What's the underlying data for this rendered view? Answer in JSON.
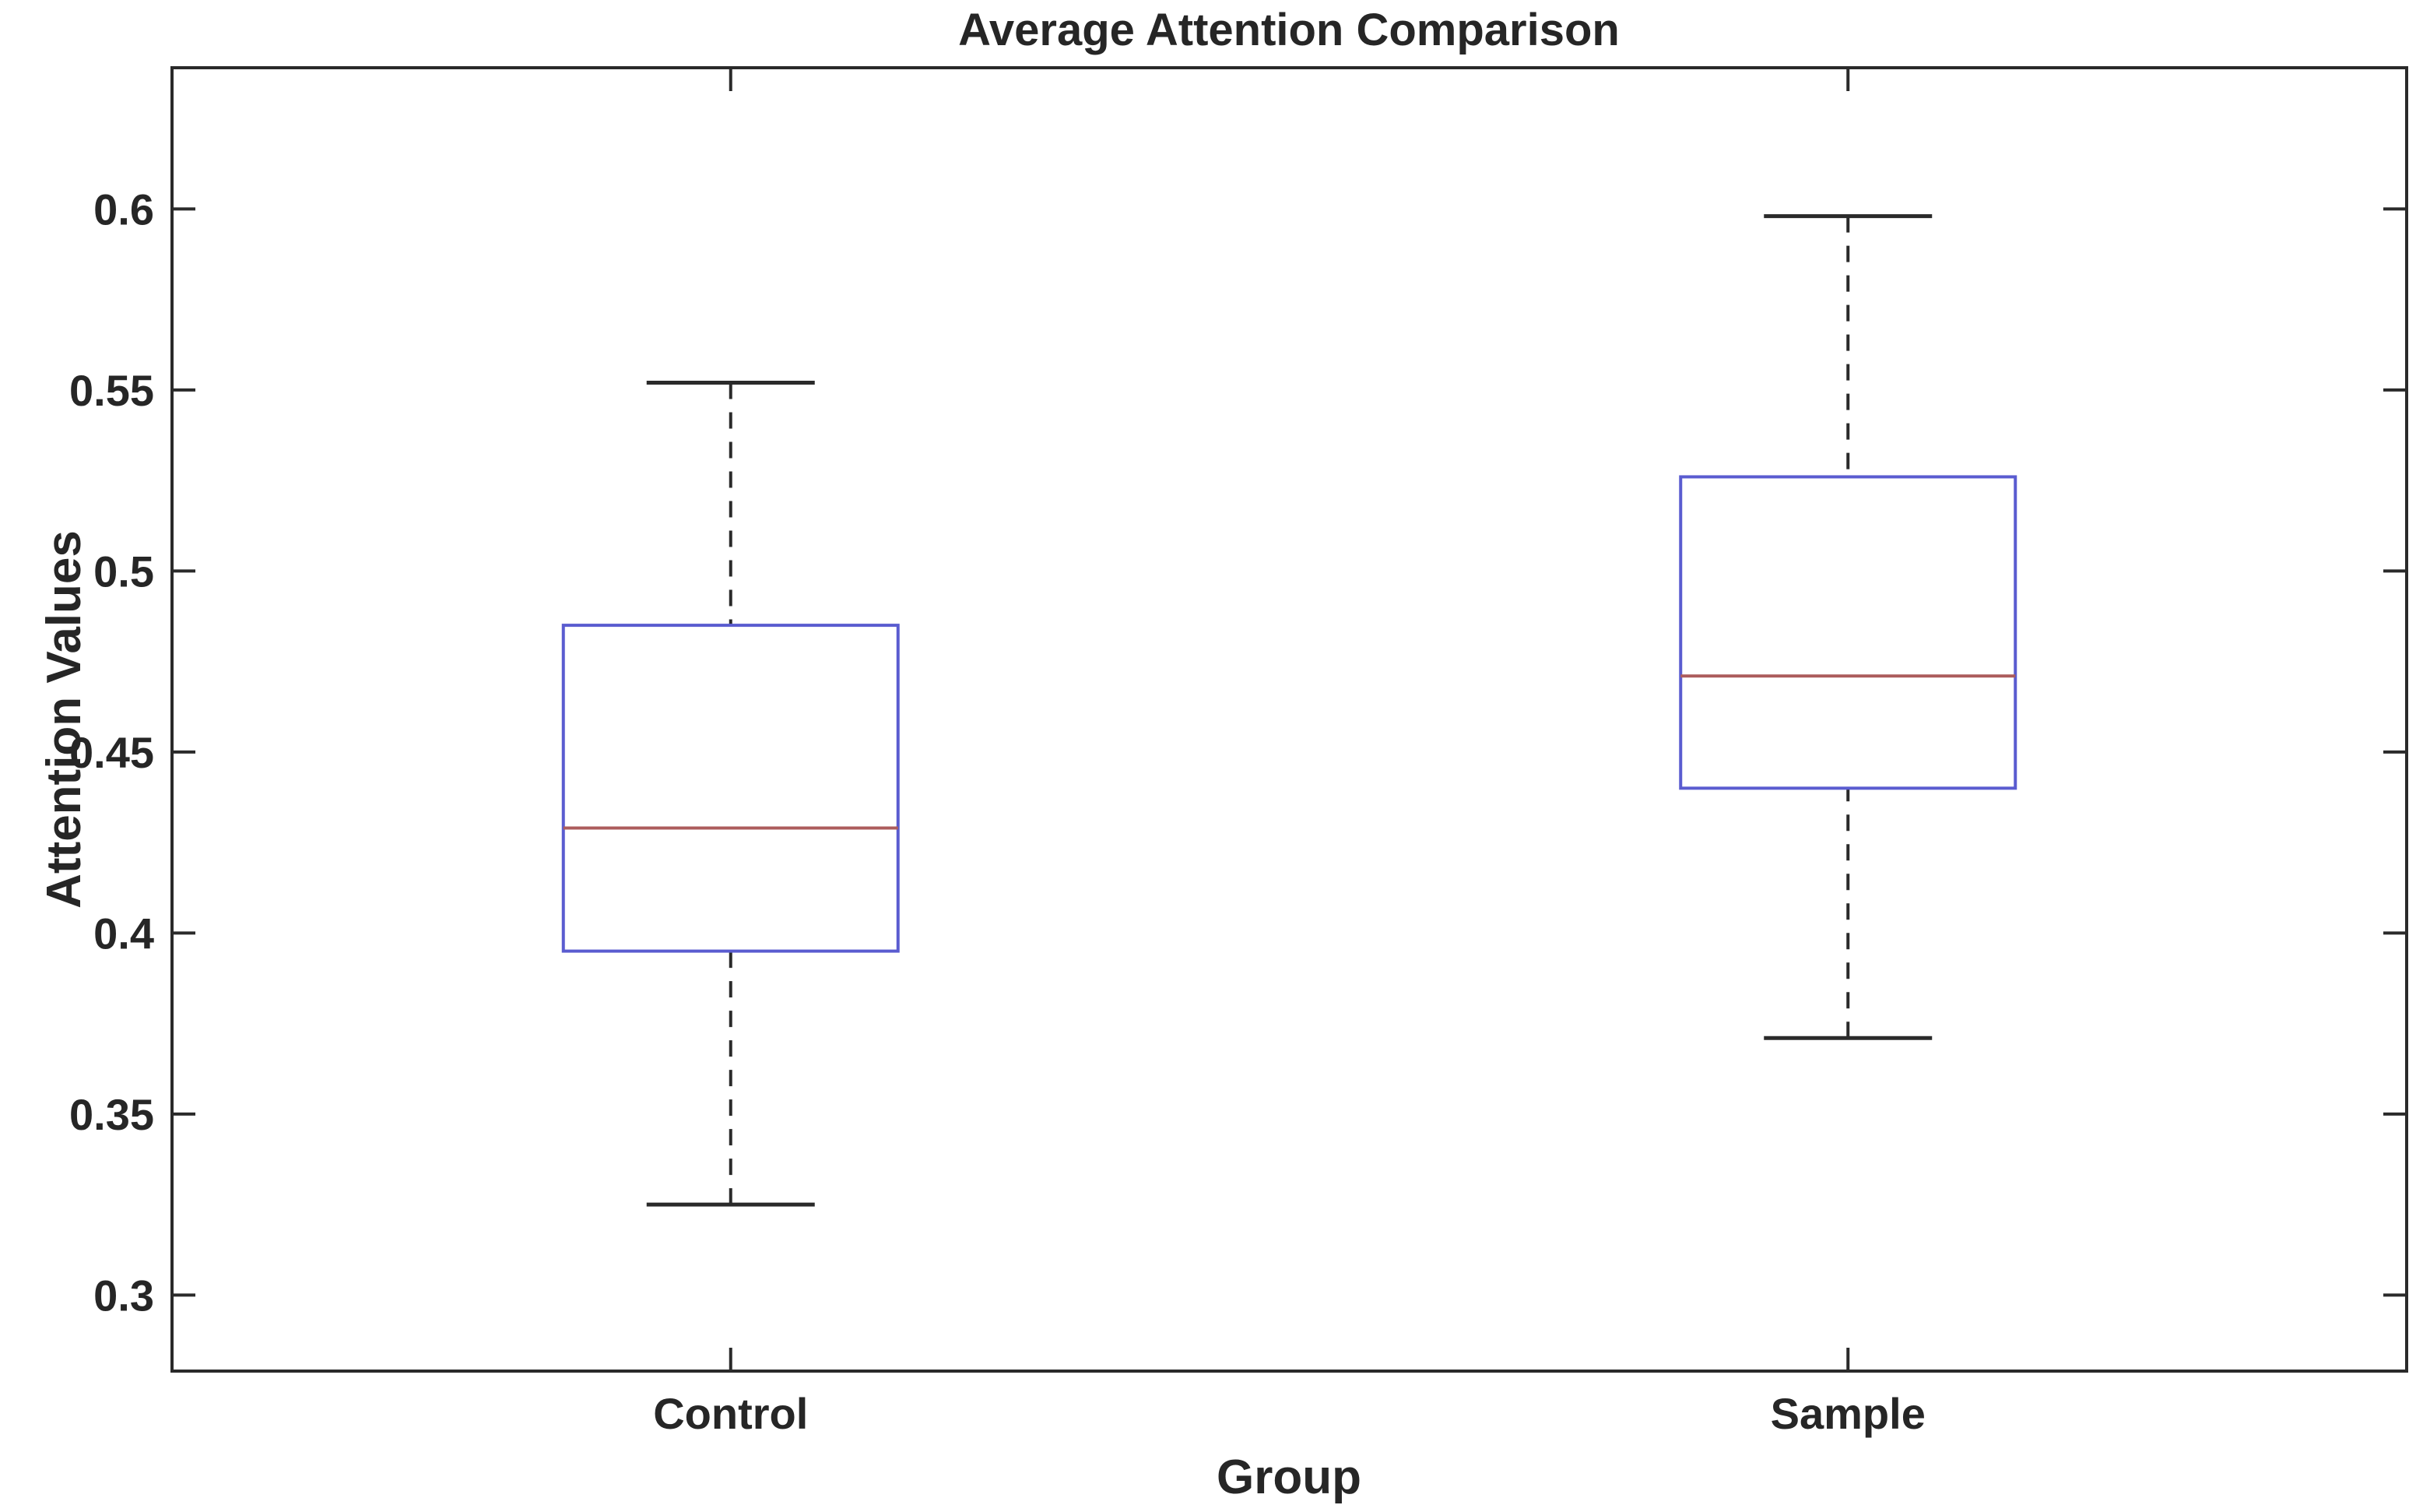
{
  "chart_data": {
    "type": "boxplot",
    "title": "Average Attention Comparison",
    "xlabel": "Group",
    "ylabel": "Attention Values",
    "categories": [
      "Control",
      "Sample"
    ],
    "series": [
      {
        "name": "Control",
        "whisker_low": 0.325,
        "q1": 0.395,
        "median": 0.429,
        "q3": 0.485,
        "whisker_high": 0.552
      },
      {
        "name": "Sample",
        "whisker_low": 0.371,
        "q1": 0.44,
        "median": 0.471,
        "q3": 0.526,
        "whisker_high": 0.598
      }
    ],
    "y_ticks": [
      0.3,
      0.35,
      0.4,
      0.45,
      0.5,
      0.55,
      0.6
    ],
    "y_tick_labels": [
      "0.3",
      "0.35",
      "0.4",
      "0.45",
      "0.5",
      "0.55",
      "0.6"
    ],
    "ylim": [
      0.279,
      0.639
    ],
    "grid": false,
    "legend": "none",
    "colors": {
      "box": "#5a5cd0",
      "median": "#ac5c5c",
      "whisker": "#2a2a2a",
      "axis": "#2a2a2a",
      "text": "#262626",
      "background": "#ffffff"
    }
  }
}
